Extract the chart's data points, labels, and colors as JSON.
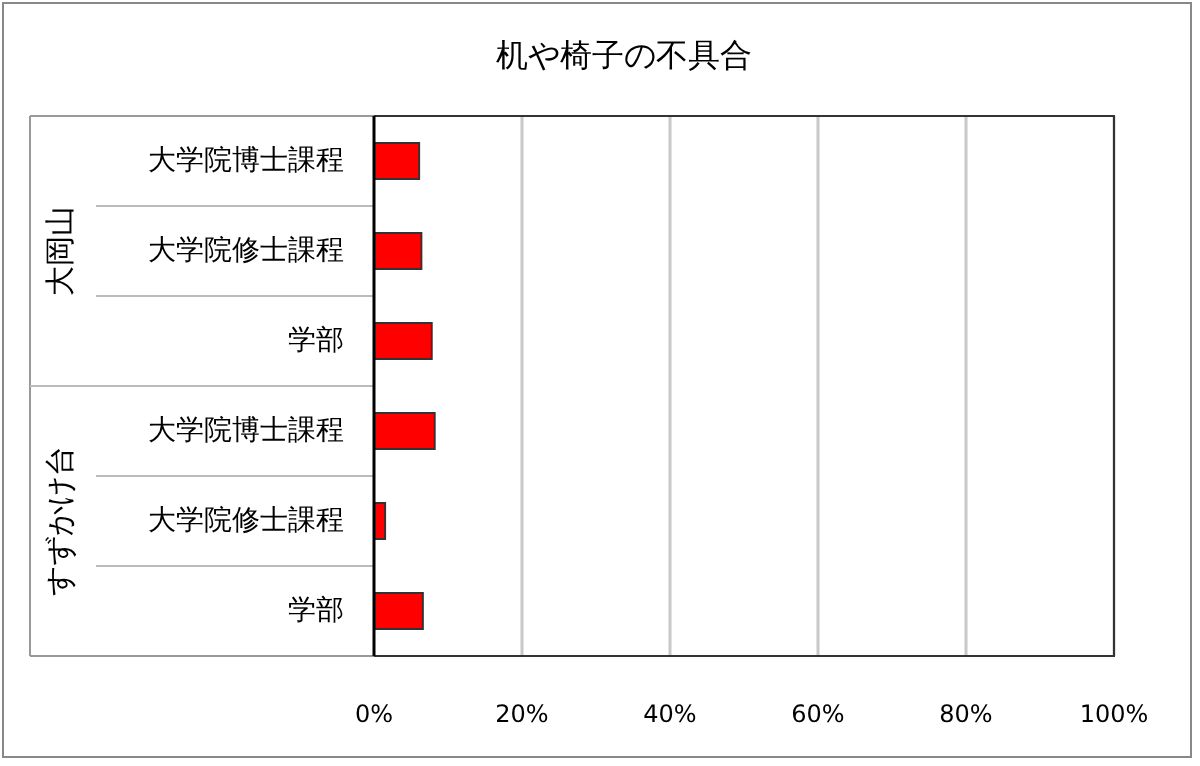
{
  "chart_data": {
    "type": "bar",
    "orientation": "horizontal",
    "title": "机や椅子の不具合",
    "categories": [
      "大学院博士課程",
      "大学院修士課程",
      "学部",
      "大学院博士課程",
      "大学院修士課程",
      "学部"
    ],
    "series": [
      {
        "color": "#ff0000",
        "values": [
          6.1,
          6.4,
          7.8,
          8.2,
          1.5,
          6.6
        ]
      }
    ],
    "xlim": [
      0,
      100
    ],
    "xticks": [
      {
        "value": 0,
        "label": "0%"
      },
      {
        "value": 20,
        "label": "20%"
      },
      {
        "value": 40,
        "label": "40%"
      },
      {
        "value": 60,
        "label": "60%"
      },
      {
        "value": 80,
        "label": "80%"
      },
      {
        "value": 100,
        "label": "100%"
      }
    ],
    "grid": "x",
    "annotations": [
      "大岡山",
      "すずかけ台"
    ]
  }
}
